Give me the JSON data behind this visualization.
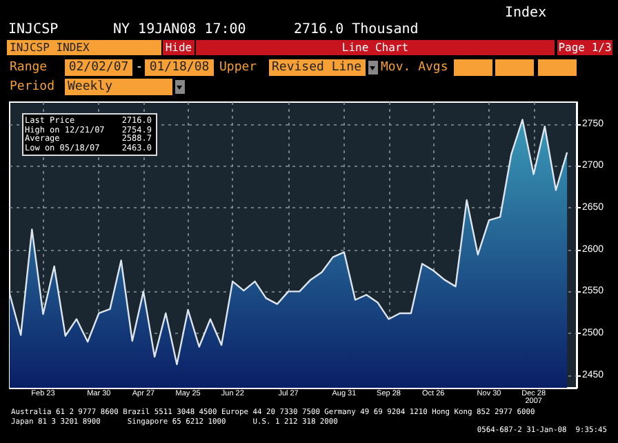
{
  "chart_data": {
    "type": "area",
    "x": [
      "2007-02-02",
      "2007-02-09",
      "2007-02-16",
      "2007-02-23",
      "2007-03-02",
      "2007-03-09",
      "2007-03-16",
      "2007-03-23",
      "2007-03-30",
      "2007-04-06",
      "2007-04-13",
      "2007-04-20",
      "2007-04-27",
      "2007-05-04",
      "2007-05-11",
      "2007-05-18",
      "2007-05-25",
      "2007-06-01",
      "2007-06-08",
      "2007-06-15",
      "2007-06-22",
      "2007-06-29",
      "2007-07-06",
      "2007-07-13",
      "2007-07-20",
      "2007-07-27",
      "2007-08-03",
      "2007-08-10",
      "2007-08-17",
      "2007-08-24",
      "2007-08-31",
      "2007-09-07",
      "2007-09-14",
      "2007-09-21",
      "2007-09-28",
      "2007-10-05",
      "2007-10-12",
      "2007-10-19",
      "2007-10-26",
      "2007-11-02",
      "2007-11-09",
      "2007-11-16",
      "2007-11-23",
      "2007-11-30",
      "2007-12-07",
      "2007-12-14",
      "2007-12-21",
      "2007-12-28",
      "2008-01-04",
      "2008-01-11",
      "2008-01-18"
    ],
    "series": [
      {
        "color": "#dfe6ee",
        "values": [
          2547,
          2498,
          2624,
          2523,
          2580,
          2497,
          2517,
          2490,
          2524,
          2529,
          2587,
          2491,
          2550,
          2472,
          2524,
          2463,
          2528,
          2484,
          2517,
          2486,
          2562,
          2551,
          2562,
          2542,
          2535,
          2550,
          2550,
          2564,
          2573,
          2591,
          2597,
          2540,
          2546,
          2537,
          2517,
          2524,
          2524,
          2583,
          2575,
          2564,
          2556,
          2659,
          2594,
          2635,
          2639,
          2714,
          2755,
          2690,
          2747,
          2671,
          2716
        ]
      }
    ],
    "xlim": [
      "2007-02-02",
      "2008-01-24"
    ],
    "xticks": [
      {
        "value": "2007-02-23",
        "label": "Feb 23"
      },
      {
        "value": "2007-03-30",
        "label": "Mar 30"
      },
      {
        "value": "2007-04-27",
        "label": "Apr 27"
      },
      {
        "value": "2007-05-25",
        "label": "May 25"
      },
      {
        "value": "2007-06-22",
        "label": "Jun 22"
      },
      {
        "value": "2007-07-27",
        "label": "Jul 27"
      },
      {
        "value": "2007-08-31",
        "label": "Aug 31"
      },
      {
        "value": "2007-09-28",
        "label": "Sep 28"
      },
      {
        "value": "2007-10-26",
        "label": "Oct 26"
      },
      {
        "value": "2007-11-30",
        "label": "Nov 30"
      },
      {
        "value": "2007-12-28",
        "label": "Dec 28\n2007"
      }
    ],
    "ylim": [
      2435,
      2776
    ],
    "yticks": [
      2450,
      2500,
      2550,
      2600,
      2650,
      2700,
      2750
    ],
    "grid": true,
    "marker": "none",
    "line_style": "solid",
    "annotations": [
      "INJCSP",
      "NY 19JAN08 17:00",
      "2716.0 Thousand",
      "Index",
      "INJCSP INDEX",
      "Hide",
      "Line Chart",
      "Page 1/3",
      "Range",
      "02/02/07",
      "-",
      "01/18/08",
      "Upper",
      "Revised Line",
      "Mov. Avgs",
      "Period",
      "Weekly",
      "Last Price",
      "2716.0",
      "High on 12/21/07",
      "2754.9",
      "Average",
      "2588.7",
      "Low on 05/18/07",
      "2463.0",
      "Australia 61 2 9777 8600 Brazil 5511 3048 4500 Europe 44 20 7330 7500 Germany 49 69 9204 1210 Hong Kong 852 2977 6000",
      "Japan 81 3 3201 8900      Singapore 65 6212 1000      U.S. 1 212 318 2000",
      "0564-687-2 31-Jan-08  9:35:45"
    ]
  }
}
